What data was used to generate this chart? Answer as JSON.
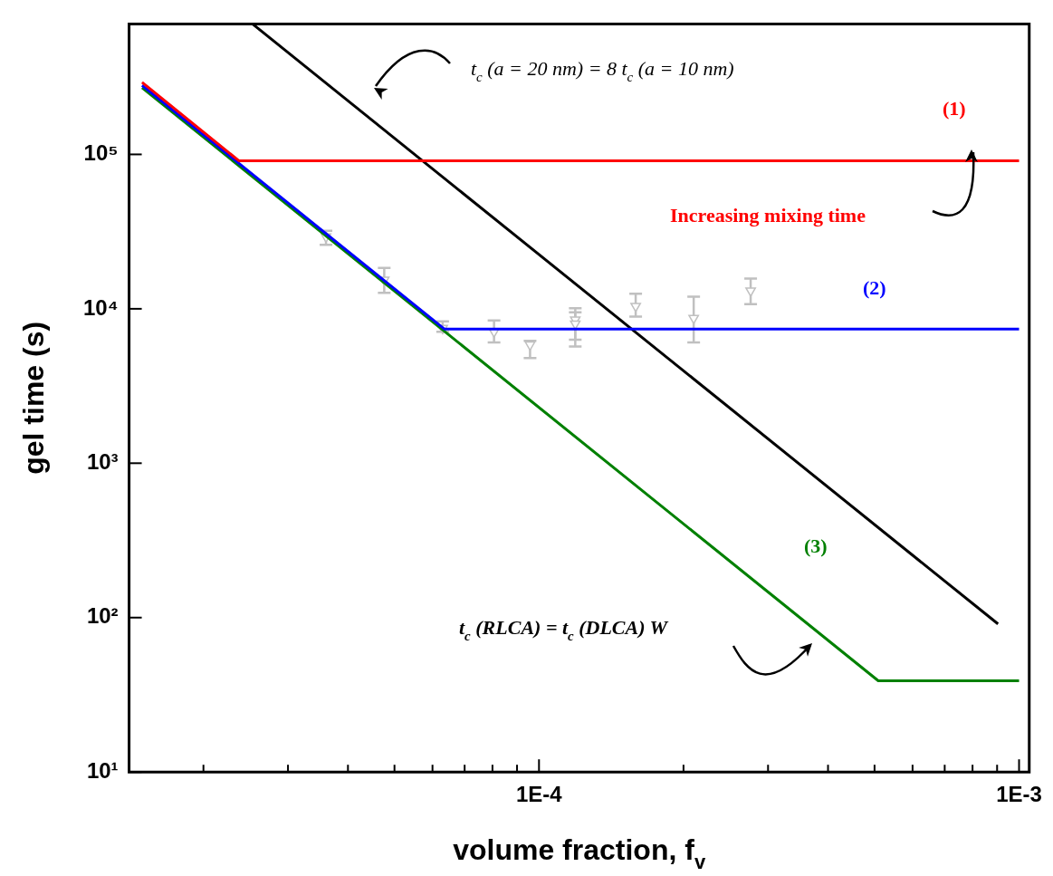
{
  "chart_data": {
    "type": "line",
    "xlabel": "volume fraction, f$_{v}$",
    "ylabel": "gel time (s)",
    "log": "xy",
    "grid": false,
    "legend": false,
    "xlim": [
      1.4e-05,
      0.00105
    ],
    "ylim": [
      10,
      700000.0
    ],
    "xticks": [
      {
        "value": 2e-05,
        "label": null
      },
      {
        "value": 3e-05,
        "label": null
      },
      {
        "value": 4e-05,
        "label": null
      },
      {
        "value": 5e-05,
        "label": null
      },
      {
        "value": 6e-05,
        "label": null
      },
      {
        "value": 7e-05,
        "label": null
      },
      {
        "value": 8e-05,
        "label": null
      },
      {
        "value": 9e-05,
        "label": null
      },
      {
        "value": 0.0001,
        "label": "1E-4"
      },
      {
        "value": 0.0002,
        "label": null
      },
      {
        "value": 0.0003,
        "label": null
      },
      {
        "value": 0.0004,
        "label": null
      },
      {
        "value": 0.0005,
        "label": null
      },
      {
        "value": 0.0006,
        "label": null
      },
      {
        "value": 0.0007,
        "label": null
      },
      {
        "value": 0.0008,
        "label": null
      },
      {
        "value": 0.0009,
        "label": null
      },
      {
        "value": 0.001,
        "label": "1E-3"
      }
    ],
    "yticks": [
      {
        "value": 10,
        "label": "10¹"
      },
      {
        "value": 100,
        "label": "10²"
      },
      {
        "value": 1000,
        "label": "10³"
      },
      {
        "value": 10000,
        "label": "10⁴"
      },
      {
        "value": 100000,
        "label": "10⁵"
      }
    ],
    "series": [
      {
        "name": "(1)",
        "color": "#ff0000",
        "x": [
          1.49e-05,
          2.37e-05,
          0.001
        ],
        "values": [
          293000.0,
          91000.0,
          91000.0
        ]
      },
      {
        "name": "(2)",
        "color": "#0000ff",
        "x": [
          1.49e-05,
          6.35e-05,
          0.001
        ],
        "values": [
          280000.0,
          7400.0,
          7400.0
        ]
      },
      {
        "name": "(3)",
        "color": "#008000",
        "x": [
          1.49e-05,
          0.000509,
          0.001
        ],
        "values": [
          270000.0,
          39,
          39
        ]
      },
      {
        "color": "#000000",
        "x": [
          2.53e-05,
          0.000904
        ],
        "values": [
          700000.0,
          91
        ]
      },
      {
        "type": "scatter",
        "color": "#c0c0c0",
        "marker": "triangle",
        "x": [
          3.6e-05,
          4.76e-05,
          6.3e-05,
          8.06e-05,
          9.58e-05,
          0.000119,
          0.000119,
          0.000159,
          0.00021,
          0.000276
        ],
        "values": [
          29300.0,
          15400.0,
          7500.0,
          7100.0,
          5850.0,
          8500.0,
          8000.0,
          10400.0,
          8700.0,
          13100.0
        ],
        "errors": [
          [
            26000.0,
            32000.0
          ],
          [
            12700.0,
            18400.0
          ],
          [
            7100.0,
            8300.0
          ],
          [
            6050.0,
            8400.0
          ],
          [
            4800.0,
            6200.0
          ],
          [
            6300.0,
            10100.0
          ],
          [
            5700.0,
            9500.0
          ],
          [
            8900.0,
            12500.0
          ],
          [
            6050.0,
            12000.0
          ],
          [
            10700.0,
            15700.0
          ]
        ]
      }
    ],
    "annotations": [
      "t$_{c}$ (a = 20 nm) = 8 t$_{c}$ (a = 10 nm)",
      "Increasing mixing time",
      "t$_{c}$ (RLCA) = t$_{c}$ (DLCA) W"
    ]
  }
}
